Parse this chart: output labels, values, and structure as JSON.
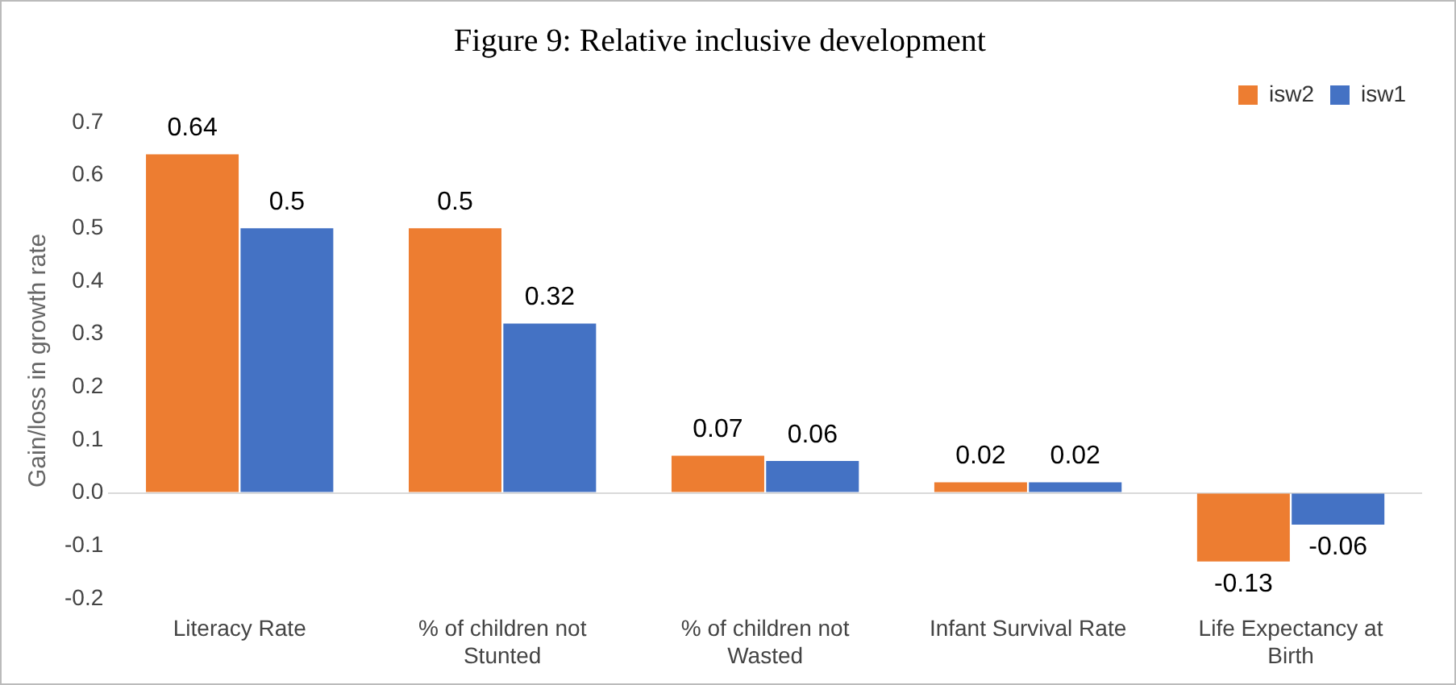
{
  "chart_data": {
    "type": "bar",
    "title": "Figure 9: Relative inclusive development",
    "ylabel": "Gain/loss in growth rate",
    "categories": [
      "Literacy Rate",
      "% of children not Stunted",
      "% of children not Wasted",
      "Infant Survival Rate",
      "Life Expectancy at Birth"
    ],
    "series": [
      {
        "name": "isw2",
        "color": "#ed7d31",
        "values": [
          0.64,
          0.5,
          0.07,
          0.02,
          -0.13
        ]
      },
      {
        "name": "isw1",
        "color": "#4472c4",
        "values": [
          0.5,
          0.32,
          0.06,
          0.02,
          -0.06
        ]
      }
    ],
    "ylim": [
      -0.2,
      0.7
    ],
    "yticks": [
      {
        "value": -0.2,
        "label": "-0.2"
      },
      {
        "value": -0.1,
        "label": "-0.1"
      },
      {
        "value": 0,
        "label": "0.0"
      },
      {
        "value": 0.1,
        "label": "0.1"
      },
      {
        "value": 0.2,
        "label": "0.2"
      },
      {
        "value": 0.3,
        "label": "0.3"
      },
      {
        "value": 0.4,
        "label": "0.4"
      },
      {
        "value": 0.5,
        "label": "0.5"
      },
      {
        "value": 0.6,
        "label": "0.6"
      },
      {
        "value": 0.7,
        "label": "0.7"
      }
    ],
    "data_labels": true,
    "legend": "top right"
  }
}
